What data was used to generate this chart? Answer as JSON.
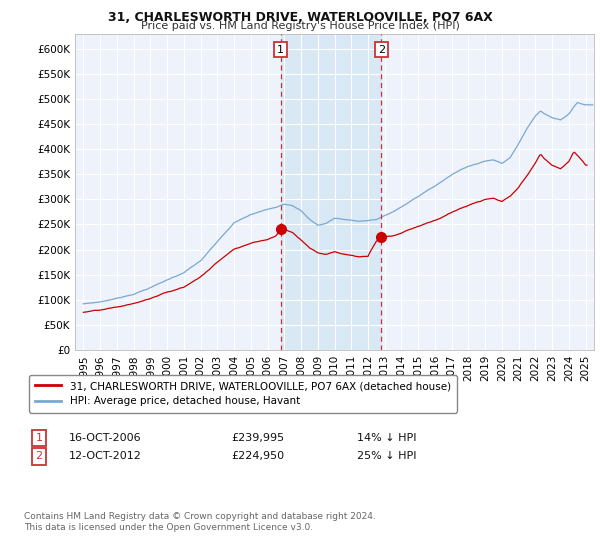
{
  "title_line1": "31, CHARLESWORTH DRIVE, WATERLOOVILLE, PO7 6AX",
  "title_line2": "Price paid vs. HM Land Registry's House Price Index (HPI)",
  "legend_label_red": "31, CHARLESWORTH DRIVE, WATERLOOVILLE, PO7 6AX (detached house)",
  "legend_label_blue": "HPI: Average price, detached house, Havant",
  "footnote": "Contains HM Land Registry data © Crown copyright and database right 2024.\nThis data is licensed under the Open Government Licence v3.0.",
  "annotation1_label": "1",
  "annotation1_date": "16-OCT-2006",
  "annotation1_price": "£239,995",
  "annotation1_pct": "14% ↓ HPI",
  "annotation2_label": "2",
  "annotation2_date": "12-OCT-2012",
  "annotation2_price": "£224,950",
  "annotation2_pct": "25% ↓ HPI",
  "ylabel_ticks": [
    "£0",
    "£50K",
    "£100K",
    "£150K",
    "£200K",
    "£250K",
    "£300K",
    "£350K",
    "£400K",
    "£450K",
    "£500K",
    "£550K",
    "£600K"
  ],
  "ytick_values": [
    0,
    50000,
    100000,
    150000,
    200000,
    250000,
    300000,
    350000,
    400000,
    450000,
    500000,
    550000,
    600000
  ],
  "ylim": [
    0,
    630000
  ],
  "background_color": "#ffffff",
  "plot_bg_color": "#eef2fa",
  "grid_color": "#ffffff",
  "red_color": "#cc0000",
  "blue_color": "#7aa8d2",
  "shade_color": "#d8e8f5",
  "vline_color": "#cc3333",
  "marker1_x_year": 2006.79,
  "marker1_y": 239995,
  "marker2_x_year": 2012.79,
  "marker2_y": 224950,
  "xmin_year": 1994.5,
  "xmax_year": 2025.5,
  "xtick_years": [
    1995,
    1996,
    1997,
    1998,
    1999,
    2000,
    2001,
    2002,
    2003,
    2004,
    2005,
    2006,
    2007,
    2008,
    2009,
    2010,
    2011,
    2012,
    2013,
    2014,
    2015,
    2016,
    2017,
    2018,
    2019,
    2020,
    2021,
    2022,
    2023,
    2024,
    2025
  ]
}
